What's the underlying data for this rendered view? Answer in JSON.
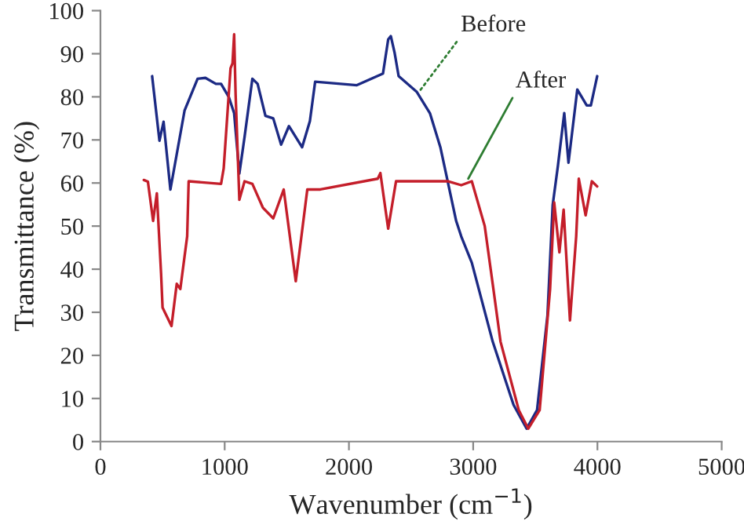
{
  "chart_data": {
    "type": "line",
    "xlabel": "Wavenumber (cm$^{−1}$)",
    "ylabel": "Transmittance (%)",
    "xlim": [
      0,
      5000
    ],
    "xticks": [
      0,
      1000,
      2000,
      3000,
      4000,
      5000
    ],
    "ylim": [
      0,
      100
    ],
    "yticks": [
      0,
      10,
      20,
      30,
      40,
      50,
      60,
      70,
      80,
      90,
      100
    ],
    "grid": false,
    "legend": false,
    "marker": "none",
    "line_style": "solid",
    "annotations": [
      {
        "text": "Before",
        "x": 2560,
        "y": 81
      },
      {
        "text": "After",
        "x": 2960,
        "y": 61
      }
    ],
    "series": [
      {
        "color": "#1c2a84",
        "x": [
          416,
          475,
          508,
          563,
          677,
          782,
          845,
          929,
          971,
          1034,
          1076,
          1118,
          1160,
          1223,
          1265,
          1328,
          1391,
          1454,
          1517,
          1623,
          1686,
          1728,
          2064,
          2274,
          2316,
          2337,
          2367,
          2400,
          2547,
          2652,
          2736,
          2863,
          2904,
          2989,
          3157,
          3325,
          3430,
          3514,
          3598,
          3640,
          3682,
          3733,
          3767,
          3838,
          3914,
          3947,
          3998
        ],
        "values": [
          84.8,
          69.8,
          74.2,
          58.5,
          76.8,
          84.2,
          84.4,
          83,
          83,
          79.9,
          76.2,
          62.2,
          70.7,
          84.2,
          83,
          75.6,
          75,
          68.9,
          73.2,
          68.3,
          74.4,
          83.5,
          82.7,
          85.4,
          93.3,
          94.1,
          90.3,
          84.8,
          81.1,
          76.2,
          68.3,
          51.2,
          47.6,
          41.5,
          23.2,
          8.5,
          3.0,
          7.3,
          29.3,
          54.9,
          64,
          76.2,
          64.7,
          81.7,
          78,
          78,
          84.8
        ]
      },
      {
        "color": "#c41e2a",
        "x": [
          349,
          382,
          424,
          454,
          488,
          500,
          572,
          614,
          643,
          698,
          710,
          971,
          992,
          1047,
          1063,
          1076,
          1088,
          1118,
          1160,
          1223,
          1307,
          1391,
          1475,
          1572,
          1665,
          1770,
          2232,
          2253,
          2316,
          2379,
          2736,
          2799,
          2904,
          2989,
          3093,
          3157,
          3220,
          3367,
          3443,
          3535,
          3619,
          3652,
          3694,
          3728,
          3779,
          3829,
          3850,
          3905,
          3955,
          3998
        ],
        "values": [
          60.7,
          60.3,
          51.2,
          57.6,
          39,
          31.1,
          26.8,
          36.6,
          35.4,
          47.6,
          60.4,
          59.8,
          63.4,
          86.6,
          87.8,
          94.5,
          80.5,
          56.1,
          60.4,
          59.8,
          54.3,
          51.8,
          58.5,
          37.2,
          58.5,
          58.5,
          61,
          62.3,
          49.4,
          60.4,
          60.4,
          60.4,
          59.5,
          60.4,
          50,
          36.6,
          23.2,
          7.3,
          3.0,
          7.3,
          35.4,
          55.5,
          43.9,
          53.8,
          28.1,
          47.6,
          61,
          52.5,
          60.4,
          59.2
        ]
      }
    ]
  }
}
